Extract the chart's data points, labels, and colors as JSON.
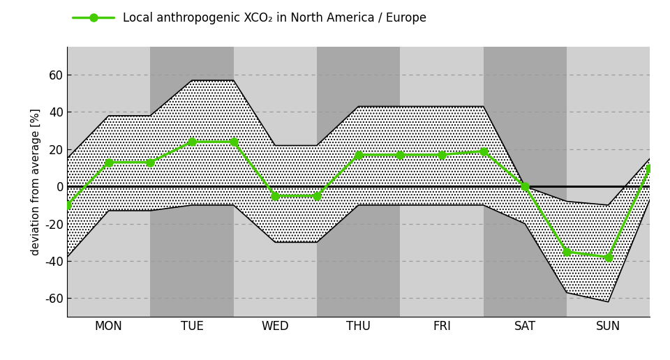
{
  "days": [
    "MON",
    "TUE",
    "WED",
    "THU",
    "FRI",
    "SAT",
    "SUN"
  ],
  "green_line_x": [
    0.0,
    0.5,
    1.0,
    1.5,
    2.0,
    2.5,
    3.0,
    3.5,
    4.0,
    4.5,
    5.0,
    5.5,
    6.0,
    6.5,
    7.0
  ],
  "green_line_y": [
    -10,
    13,
    13,
    24,
    24,
    -5,
    -5,
    17,
    17,
    17,
    19,
    0,
    -35,
    -38,
    10
  ],
  "upper_band_y": [
    15,
    38,
    38,
    57,
    57,
    22,
    22,
    43,
    43,
    43,
    43,
    0,
    -8,
    -10,
    15
  ],
  "lower_band_y": [
    -38,
    -13,
    -13,
    -10,
    -10,
    -30,
    -30,
    -10,
    -10,
    -10,
    -10,
    -20,
    -57,
    -62,
    -7
  ],
  "green_color": "#44cc00",
  "bg_light": "#d0d0d0",
  "bg_dark": "#a8a8a8",
  "bg_lighter": "#e0e0e0",
  "ylabel": "deviation from average [%]",
  "legend_label": "Local anthropogenic XCO₂ in North America / Europe",
  "ylim": [
    -70,
    75
  ],
  "yticks": [
    -60,
    -40,
    -20,
    0,
    20,
    40,
    60
  ],
  "grid_color": "#999999",
  "zero_line_color": "#000000",
  "tick_label_fontsize": 12,
  "ylabel_fontsize": 11,
  "legend_fontsize": 12,
  "hatch_density": "....",
  "band_edge_lw": 1.2
}
